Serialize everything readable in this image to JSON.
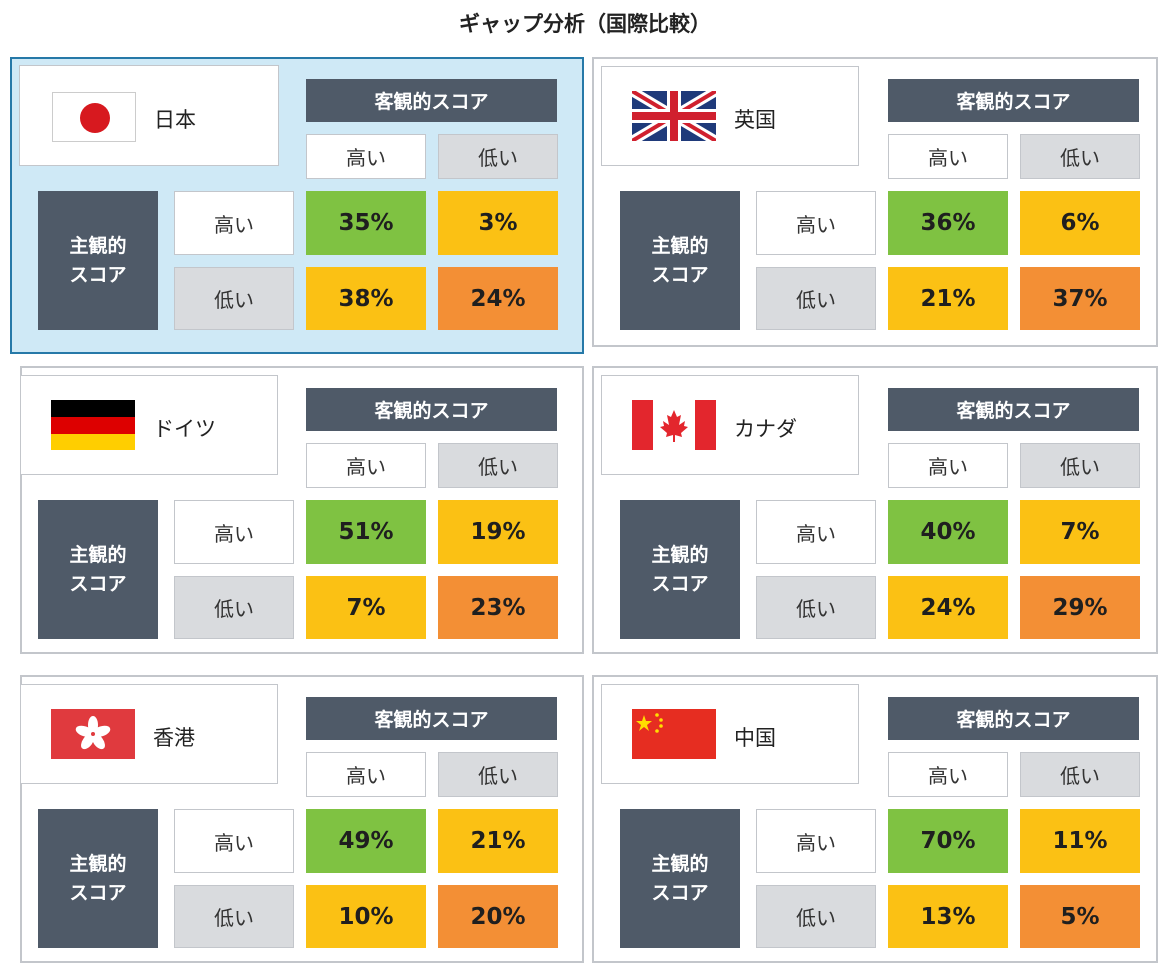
{
  "title": "ギャップ分析（国際比較）",
  "labels": {
    "objective_header": "客観的スコア",
    "subjective_header_line1": "主観的",
    "subjective_header_line2": "スコア",
    "high": "高い",
    "low": "低い"
  },
  "colors": {
    "header_bg": "#4f5a68",
    "high_high": "#7fc242",
    "mixed": "#fbc114",
    "low_low": "#f38f35",
    "selected_frame": "#2679a8",
    "selected_bg": "#cfe9f6"
  },
  "countries": [
    {
      "name": "日本",
      "flag": "japan-flag-icon",
      "selected": true,
      "high_high": "35%",
      "high_low": "3%",
      "low_high": "38%",
      "low_low": "24%"
    },
    {
      "name": "英国",
      "flag": "uk-flag-icon",
      "selected": false,
      "high_high": "36%",
      "high_low": "6%",
      "low_high": "21%",
      "low_low": "37%"
    },
    {
      "name": "ドイツ",
      "flag": "germany-flag-icon",
      "selected": false,
      "high_high": "51%",
      "high_low": "19%",
      "low_high": "7%",
      "low_low": "23%"
    },
    {
      "name": "カナダ",
      "flag": "canada-flag-icon",
      "selected": false,
      "high_high": "40%",
      "high_low": "7%",
      "low_high": "24%",
      "low_low": "29%"
    },
    {
      "name": "香港",
      "flag": "hongkong-flag-icon",
      "selected": false,
      "high_high": "49%",
      "high_low": "21%",
      "low_high": "10%",
      "low_low": "20%"
    },
    {
      "name": "中国",
      "flag": "china-flag-icon",
      "selected": false,
      "high_high": "70%",
      "high_low": "11%",
      "low_high": "13%",
      "low_low": "5%"
    }
  ]
}
